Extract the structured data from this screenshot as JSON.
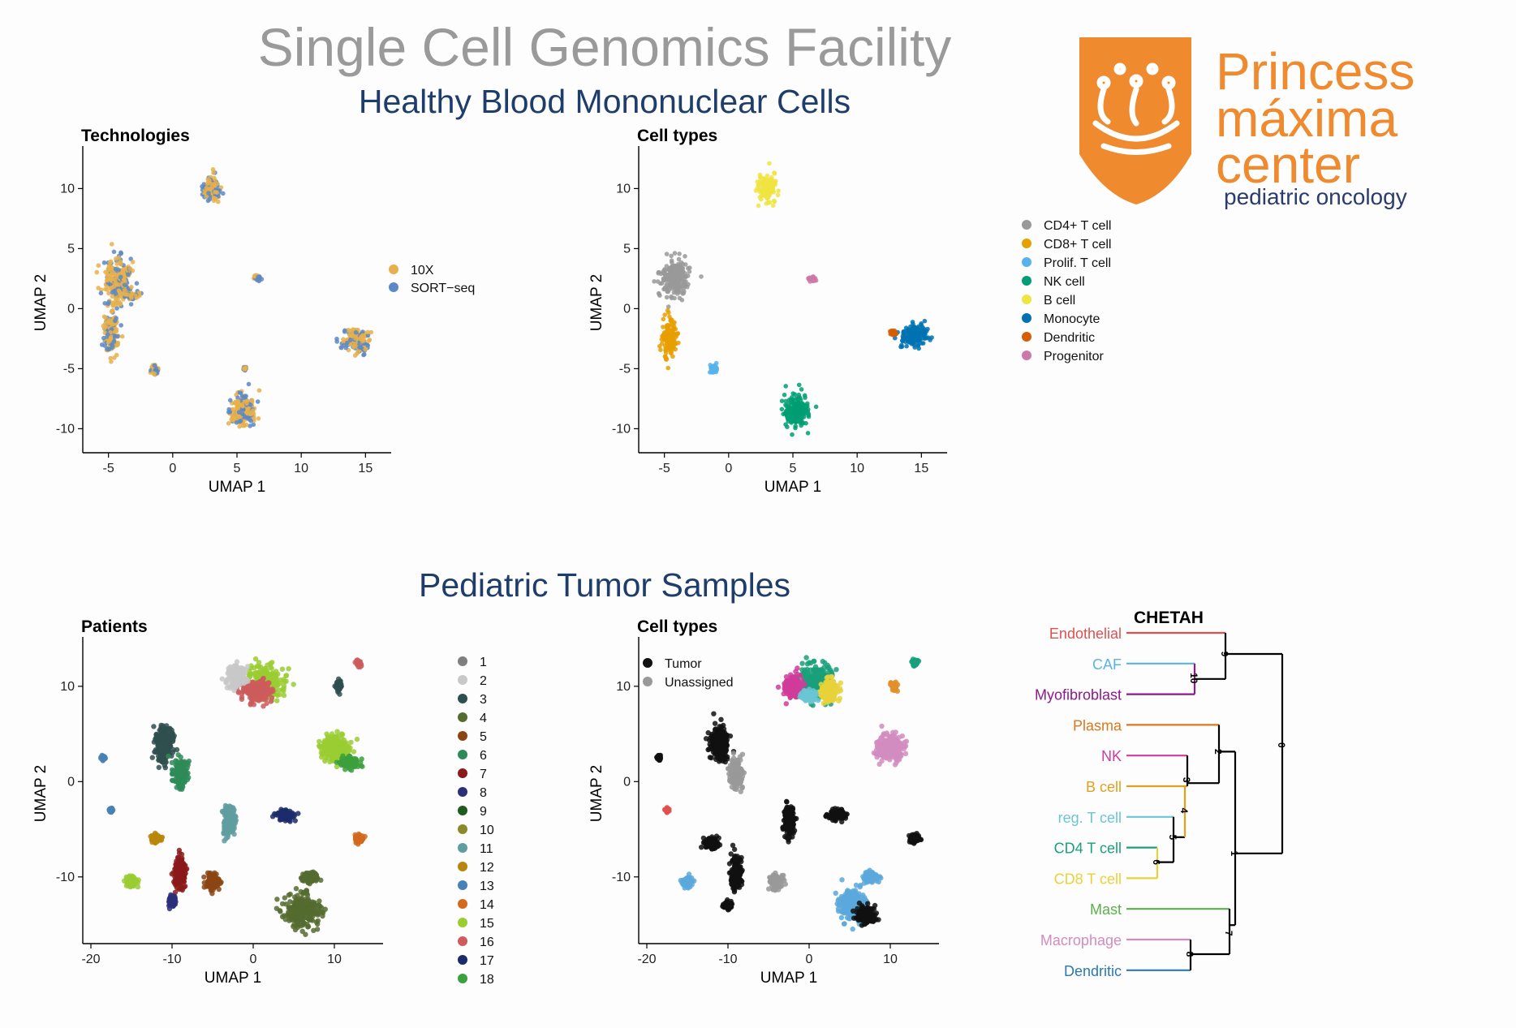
{
  "title": "Single Cell Genomics Facility",
  "section_healthy": "Healthy Blood Mononuclear Cells",
  "section_tumor": "Pediatric Tumor Samples",
  "logo": {
    "line1": "Princess",
    "line2": "máxima",
    "line3": "center",
    "line4": "pediatric oncology",
    "color": "#ef8a2e",
    "navy": "#2b3b6b"
  },
  "chart_data": [
    {
      "type": "scatter",
      "title": "Technologies",
      "xlabel": "UMAP 1",
      "ylabel": "UMAP 2",
      "xlim": [
        -7,
        17
      ],
      "ylim": [
        -12,
        13
      ],
      "xticks": [
        -5,
        0,
        5,
        10,
        15
      ],
      "yticks": [
        -10,
        -5,
        0,
        5,
        10
      ],
      "legend": [
        "10X",
        "SORT−seq"
      ],
      "legend_colors": [
        "#e8b04b",
        "#5b88c6"
      ],
      "clusters": [
        {
          "x": 3,
          "y": 10,
          "sx": 0.6,
          "sy": 1.0
        },
        {
          "x": -4.2,
          "y": 2.3,
          "sx": 1.0,
          "sy": 1.6
        },
        {
          "x": -4.8,
          "y": -2.0,
          "sx": 0.5,
          "sy": 1.6
        },
        {
          "x": -3.3,
          "y": 1.1,
          "sx": 0.5,
          "sy": 0.2
        },
        {
          "x": -1.4,
          "y": -5.1,
          "sx": 0.25,
          "sy": 0.35
        },
        {
          "x": 6.6,
          "y": 2.6,
          "sx": 0.25,
          "sy": 0.2
        },
        {
          "x": 14.3,
          "y": -2.6,
          "sx": 1.0,
          "sy": 0.9
        },
        {
          "x": 5.5,
          "y": -8.4,
          "sx": 0.9,
          "sy": 1.2
        },
        {
          "x": 5.6,
          "y": -5.0,
          "sx": 0.1,
          "sy": 0.1
        }
      ]
    },
    {
      "type": "scatter",
      "title": "Cell types",
      "xlabel": "UMAP 1",
      "ylabel": "UMAP 2",
      "xlim": [
        -7,
        17
      ],
      "ylim": [
        -12,
        13
      ],
      "xticks": [
        -5,
        0,
        5,
        10,
        15
      ],
      "yticks": [
        -10,
        -5,
        0,
        5,
        10
      ],
      "legend": [
        "CD4+ T cell",
        "CD8+ T cell",
        "Prolif. T cell",
        "NK cell",
        "B cell",
        "Monocyte",
        "Dendritic",
        "Progenitor"
      ],
      "legend_colors": [
        "#999999",
        "#e69f00",
        "#56b4e9",
        "#009e73",
        "#f0e442",
        "#0072b2",
        "#d55e00",
        "#cc79a7"
      ],
      "clusters": [
        {
          "x": 3,
          "y": 10,
          "sx": 0.6,
          "sy": 1.0,
          "c": 4
        },
        {
          "x": -4.2,
          "y": 2.5,
          "sx": 1.0,
          "sy": 1.4,
          "c": 0
        },
        {
          "x": -4.6,
          "y": -2.5,
          "sx": 0.5,
          "sy": 1.5,
          "c": 1
        },
        {
          "x": -1.2,
          "y": -5.0,
          "sx": 0.25,
          "sy": 0.3,
          "c": 2
        },
        {
          "x": 6.5,
          "y": 2.5,
          "sx": 0.25,
          "sy": 0.2,
          "c": 7
        },
        {
          "x": 14.5,
          "y": -2.3,
          "sx": 0.9,
          "sy": 0.9,
          "c": 5
        },
        {
          "x": 12.8,
          "y": -2.0,
          "sx": 0.2,
          "sy": 0.15,
          "c": 6
        },
        {
          "x": 5.2,
          "y": -8.5,
          "sx": 0.9,
          "sy": 1.2,
          "c": 3
        }
      ]
    },
    {
      "type": "scatter",
      "title": "Patients",
      "xlabel": "UMAP 1",
      "ylabel": "UMAP 2",
      "xlim": [
        -21,
        16
      ],
      "ylim": [
        -17,
        14.5
      ],
      "xticks": [
        -20,
        -10,
        0,
        10
      ],
      "yticks": [
        -10,
        0,
        10
      ],
      "legend": [
        "1",
        "2",
        "3",
        "4",
        "5",
        "6",
        "7",
        "8",
        "9",
        "10",
        "11",
        "12",
        "13",
        "14",
        "15",
        "16",
        "17",
        "18"
      ],
      "legend_colors": [
        "#7f7f7f",
        "#c8c8c8",
        "#2f4f4f",
        "#556b2f",
        "#8b4513",
        "#2e8b57",
        "#8b1a1a",
        "#2c2f7a",
        "#1e5c1e",
        "#8a8a2a",
        "#5f9ea0",
        "#b8860b",
        "#4682b4",
        "#d2691e",
        "#9acd32",
        "#cd5c5c",
        "#1c2b6b",
        "#3ca03c"
      ],
      "clusters": [
        {
          "x": 1.5,
          "y": 10.5,
          "sx": 2.0,
          "sy": 1.5,
          "c": 14
        },
        {
          "x": 0.5,
          "y": 9.5,
          "sx": 1.5,
          "sy": 1.0,
          "c": 15
        },
        {
          "x": -2,
          "y": 11,
          "sx": 1.0,
          "sy": 1.0,
          "c": 1
        },
        {
          "x": -11,
          "y": 4.0,
          "sx": 1.0,
          "sy": 1.5,
          "c": 2
        },
        {
          "x": -9,
          "y": 1.0,
          "sx": 0.8,
          "sy": 1.3,
          "c": 5
        },
        {
          "x": 10,
          "y": 3.5,
          "sx": 1.5,
          "sy": 1.2,
          "c": 14
        },
        {
          "x": 12,
          "y": 2.0,
          "sx": 1.0,
          "sy": 0.5,
          "c": 17
        },
        {
          "x": -3,
          "y": -4.0,
          "sx": 0.6,
          "sy": 1.5,
          "c": 10
        },
        {
          "x": 4,
          "y": -3.5,
          "sx": 1.0,
          "sy": 0.5,
          "c": 16
        },
        {
          "x": -12,
          "y": -6.0,
          "sx": 0.6,
          "sy": 0.4,
          "c": 11
        },
        {
          "x": -9,
          "y": -9.5,
          "sx": 0.6,
          "sy": 1.5,
          "c": 6
        },
        {
          "x": -5,
          "y": -10.5,
          "sx": 0.7,
          "sy": 0.7,
          "c": 4
        },
        {
          "x": 6,
          "y": -13.5,
          "sx": 2.0,
          "sy": 1.5,
          "c": 3
        },
        {
          "x": 7,
          "y": -10.0,
          "sx": 1.0,
          "sy": 0.5,
          "c": 3
        },
        {
          "x": 13,
          "y": -6.0,
          "sx": 0.5,
          "sy": 0.4,
          "c": 13
        },
        {
          "x": 13,
          "y": 12.5,
          "sx": 0.3,
          "sy": 0.3,
          "c": 15
        },
        {
          "x": -18.5,
          "y": 2.5,
          "sx": 0.2,
          "sy": 0.2,
          "c": 12
        },
        {
          "x": -17.5,
          "y": -3.0,
          "sx": 0.2,
          "sy": 0.2,
          "c": 12
        },
        {
          "x": -15,
          "y": -10.5,
          "sx": 0.6,
          "sy": 0.5,
          "c": 14
        },
        {
          "x": 10.5,
          "y": 10.0,
          "sx": 0.3,
          "sy": 0.5,
          "c": 2
        },
        {
          "x": -10,
          "y": -12.5,
          "sx": 0.4,
          "sy": 0.5,
          "c": 7
        }
      ]
    },
    {
      "type": "scatter",
      "title": "Cell types",
      "xlabel": "UMAP 1",
      "ylabel": "UMAP 2",
      "xlim": [
        -21,
        16
      ],
      "ylim": [
        -17,
        14.5
      ],
      "xticks": [
        -20,
        -10,
        0,
        10
      ],
      "yticks": [
        -10,
        0,
        10
      ],
      "legend": [
        "Tumor",
        "Unassigned"
      ],
      "legend_colors": [
        "#111111",
        "#999999"
      ],
      "cluster_colors": [
        "#111111",
        "#999999",
        "#1aa07a",
        "#e8d23a",
        "#d03c9a",
        "#6ac6d2",
        "#d28cbf",
        "#5aa8dc",
        "#e0902a",
        "#e05050"
      ],
      "clusters": [
        {
          "x": 1,
          "y": 10.5,
          "sx": 1.8,
          "sy": 1.5,
          "c": 2
        },
        {
          "x": 2.5,
          "y": 9.5,
          "sx": 1.0,
          "sy": 1.0,
          "c": 3
        },
        {
          "x": -2,
          "y": 10,
          "sx": 1.0,
          "sy": 1.0,
          "c": 4
        },
        {
          "x": 0,
          "y": 9.0,
          "sx": 0.8,
          "sy": 0.5,
          "c": 5
        },
        {
          "x": -11,
          "y": 4.0,
          "sx": 1.0,
          "sy": 1.5,
          "c": 0
        },
        {
          "x": -9,
          "y": 1.0,
          "sx": 0.7,
          "sy": 1.3,
          "c": 1
        },
        {
          "x": 10,
          "y": 3.5,
          "sx": 1.4,
          "sy": 1.2,
          "c": 6
        },
        {
          "x": -2.5,
          "y": -4.0,
          "sx": 0.6,
          "sy": 1.4,
          "c": 0
        },
        {
          "x": 3.5,
          "y": -3.5,
          "sx": 1.0,
          "sy": 0.5,
          "c": 0
        },
        {
          "x": -12,
          "y": -6.5,
          "sx": 0.8,
          "sy": 0.5,
          "c": 0
        },
        {
          "x": -9,
          "y": -9.5,
          "sx": 0.6,
          "sy": 1.5,
          "c": 0
        },
        {
          "x": -4,
          "y": -10.5,
          "sx": 0.7,
          "sy": 0.7,
          "c": 1
        },
        {
          "x": 5.5,
          "y": -13.0,
          "sx": 1.6,
          "sy": 1.5,
          "c": 7
        },
        {
          "x": 7,
          "y": -14.0,
          "sx": 1.0,
          "sy": 0.8,
          "c": 0
        },
        {
          "x": 7.5,
          "y": -10.0,
          "sx": 0.8,
          "sy": 0.5,
          "c": 7
        },
        {
          "x": 13,
          "y": -6.0,
          "sx": 0.5,
          "sy": 0.4,
          "c": 0
        },
        {
          "x": 13,
          "y": 12.5,
          "sx": 0.3,
          "sy": 0.3,
          "c": 2
        },
        {
          "x": 10.5,
          "y": 10.0,
          "sx": 0.3,
          "sy": 0.4,
          "c": 8
        },
        {
          "x": -18.5,
          "y": 2.5,
          "sx": 0.2,
          "sy": 0.2,
          "c": 0
        },
        {
          "x": -17.5,
          "y": -3.0,
          "sx": 0.2,
          "sy": 0.2,
          "c": 9
        },
        {
          "x": -15,
          "y": -10.5,
          "sx": 0.6,
          "sy": 0.5,
          "c": 7
        },
        {
          "x": -10,
          "y": -13,
          "sx": 0.4,
          "sy": 0.4,
          "c": 0
        }
      ]
    }
  ],
  "dendrogram": {
    "title": "CHETAH",
    "leaves": [
      {
        "label": "Endothelial",
        "color": "#e05050"
      },
      {
        "label": "CAF",
        "color": "#5ab4e0"
      },
      {
        "label": "Myofibroblast",
        "color": "#8b1a8b"
      },
      {
        "label": "Plasma",
        "color": "#d9781e"
      },
      {
        "label": "NK",
        "color": "#d03c9a"
      },
      {
        "label": "B cell",
        "color": "#e0a020"
      },
      {
        "label": "reg. T cell",
        "color": "#6ac6d2"
      },
      {
        "label": "CD4 T cell",
        "color": "#1aa07a"
      },
      {
        "label": "CD8 T cell",
        "color": "#e8d23a"
      },
      {
        "label": "Mast",
        "color": "#5ab04a"
      },
      {
        "label": "Macrophage",
        "color": "#d28cbf"
      },
      {
        "label": "Dendritic",
        "color": "#2a78b8"
      }
    ],
    "nodes": [
      "0",
      "1",
      "2",
      "3",
      "4",
      "5",
      "6",
      "7",
      "8",
      "9",
      "10"
    ]
  }
}
